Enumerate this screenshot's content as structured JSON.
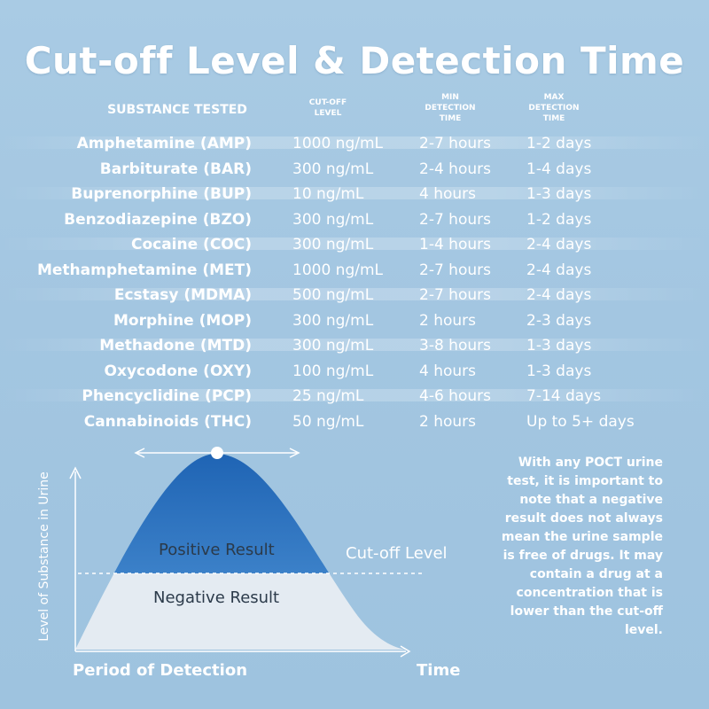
{
  "title": "Cut-off Level & Detection Time",
  "headers": {
    "substance": "SUBSTANCE TESTED",
    "cutoff": [
      "CUT-OFF",
      "LEVEL"
    ],
    "min": [
      "MIN",
      "DETECTION",
      "TIME"
    ],
    "max": [
      "MAX",
      "DETECTION",
      "TIME"
    ]
  },
  "rows": [
    {
      "substance": "Amphetamine (AMP)",
      "cutoff": "1000 ng/mL",
      "min": "2-7 hours",
      "max": "1-2 days"
    },
    {
      "substance": "Barbiturate (BAR)",
      "cutoff": "300 ng/mL",
      "min": "2-4 hours",
      "max": "1-4 days"
    },
    {
      "substance": "Buprenorphine (BUP)",
      "cutoff": "10 ng/mL",
      "min": "4 hours",
      "max": "1-3 days"
    },
    {
      "substance": "Benzodiazepine (BZO)",
      "cutoff": "300 ng/mL",
      "min": "2-7 hours",
      "max": "1-2 days"
    },
    {
      "substance": "Cocaine (COC)",
      "cutoff": "300 ng/mL",
      "min": "1-4 hours",
      "max": "2-4 days"
    },
    {
      "substance": "Methamphetamine (MET)",
      "cutoff": "1000 ng/mL",
      "min": "2-7 hours",
      "max": "2-4 days"
    },
    {
      "substance": "Ecstasy (MDMA)",
      "cutoff": "500 ng/mL",
      "min": "2-7 hours",
      "max": "2-4 days"
    },
    {
      "substance": "Morphine (MOP)",
      "cutoff": "300 ng/mL",
      "min": "2 hours",
      "max": "2-3 days"
    },
    {
      "substance": "Methadone (MTD)",
      "cutoff": "300 ng/mL",
      "min": "3-8 hours",
      "max": "1-3 days"
    },
    {
      "substance": "Oxycodone (OXY)",
      "cutoff": "100 ng/mL",
      "min": "4 hours",
      "max": "1-3 days"
    },
    {
      "substance": "Phencyclidine (PCP)",
      "cutoff": "25 ng/mL",
      "min": "4-6 hours",
      "max": "7-14 days"
    },
    {
      "substance": "Cannabinoids (THC)",
      "cutoff": "50 ng/mL",
      "min": "2 hours",
      "max": "Up to 5+ days"
    }
  ],
  "diagram": {
    "y_axis_label": "Level of Substance in Urine",
    "x_axis_label": "Period of Detection",
    "time_label": "Time",
    "cutoff_label": "Cut-off Level",
    "positive_label": "Positive Result",
    "negative_label": "Negative Result"
  },
  "note": "With any POCT urine test, it is important to note that a negative result does not always mean the urine sample is free of drugs. It may contain a drug at a concentration that is lower than the cut-off level.",
  "colors": {
    "background": "#a9cbe4",
    "positive_fill": "#2f74c0",
    "negative_fill": "#e4ebf2"
  }
}
